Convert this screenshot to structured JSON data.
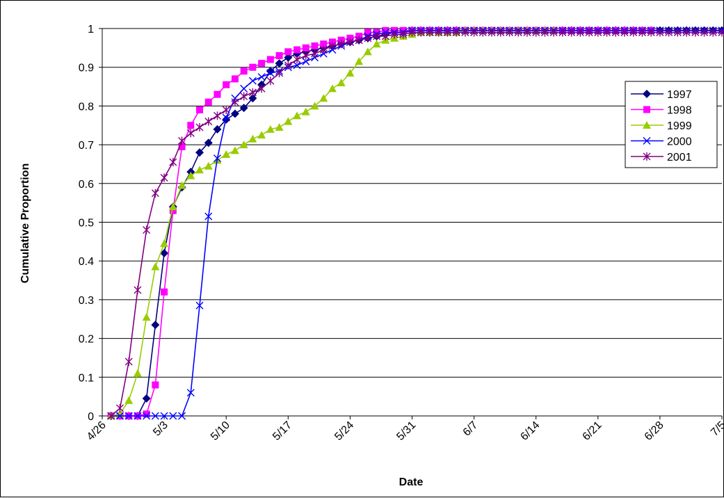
{
  "chart_data": {
    "type": "line",
    "title": "",
    "xlabel": "Date",
    "ylabel": "Cumulative Proportion",
    "x_tick_labels": [
      "4/26",
      "5/3",
      "5/10",
      "5/17",
      "5/24",
      "5/31",
      "6/7",
      "6/14",
      "6/21",
      "6/28",
      "7/5"
    ],
    "y_tick_labels": [
      "0",
      "0.1",
      "0.2",
      "0.3",
      "0.4",
      "0.5",
      "0.6",
      "0.7",
      "0.8",
      "0.9",
      "1"
    ],
    "xlim": [
      "4/26",
      "7/5"
    ],
    "ylim": [
      0,
      1
    ],
    "grid": "horizontal",
    "legend_position": "right",
    "series": [
      {
        "name": "1997",
        "color": "#000080",
        "marker": "diamond",
        "x": [
          "4/27",
          "4/28",
          "4/29",
          "4/30",
          "5/1",
          "5/2",
          "5/3",
          "5/4",
          "5/5",
          "5/6",
          "5/7",
          "5/8",
          "5/9",
          "5/10",
          "5/11",
          "5/12",
          "5/13",
          "5/14",
          "5/15",
          "5/16",
          "5/17",
          "5/18",
          "5/19",
          "5/20",
          "5/21",
          "5/22",
          "5/23",
          "5/24",
          "5/25",
          "5/26",
          "5/27",
          "5/28",
          "5/29",
          "5/30",
          "5/31",
          "6/1",
          "6/2",
          "6/3",
          "6/4",
          "6/5",
          "6/6",
          "6/7",
          "6/8",
          "6/9",
          "6/10",
          "6/11",
          "6/12",
          "6/13",
          "6/14",
          "6/15",
          "6/16",
          "6/17",
          "6/18",
          "6/19",
          "6/20",
          "6/21",
          "6/22",
          "6/23",
          "6/24",
          "6/25",
          "6/26",
          "6/27",
          "6/28",
          "6/29",
          "6/30",
          "7/1",
          "7/2",
          "7/3",
          "7/4",
          "7/5"
        ],
        "y": [
          0,
          0,
          0,
          0,
          0.045,
          0.235,
          0.42,
          0.54,
          0.59,
          0.63,
          0.68,
          0.705,
          0.74,
          0.765,
          0.78,
          0.795,
          0.82,
          0.855,
          0.89,
          0.91,
          0.925,
          0.935,
          0.94,
          0.945,
          0.95,
          0.955,
          0.96,
          0.965,
          0.97,
          0.975,
          0.98,
          0.985,
          0.99,
          0.99,
          0.995,
          0.995,
          0.995,
          0.995,
          0.995,
          0.995,
          0.995,
          0.995,
          0.995,
          0.995,
          0.995,
          0.995,
          0.995,
          0.995,
          0.995,
          0.995,
          0.995,
          0.995,
          0.995,
          0.995,
          0.995,
          0.995,
          0.995,
          0.995,
          0.995,
          0.995,
          0.995,
          0.995,
          0.995,
          0.995,
          0.995,
          0.995,
          0.995,
          0.995,
          0.995,
          0.995
        ]
      },
      {
        "name": "1998",
        "color": "#FF00FF",
        "marker": "square",
        "x": [
          "4/27",
          "4/28",
          "4/29",
          "4/30",
          "5/1",
          "5/2",
          "5/3",
          "5/4",
          "5/5",
          "5/6",
          "5/7",
          "5/8",
          "5/9",
          "5/10",
          "5/11",
          "5/12",
          "5/13",
          "5/14",
          "5/15",
          "5/16",
          "5/17",
          "5/18",
          "5/19",
          "5/20",
          "5/21",
          "5/22",
          "5/23",
          "5/24",
          "5/25",
          "5/26",
          "5/27",
          "5/28",
          "5/29",
          "5/30",
          "5/31",
          "6/1",
          "6/2",
          "6/3",
          "6/4",
          "6/5",
          "6/6",
          "6/7",
          "6/8",
          "6/9",
          "6/10",
          "6/11",
          "6/12",
          "6/13",
          "6/14",
          "6/15",
          "6/16",
          "6/17",
          "6/18",
          "6/19",
          "6/20",
          "6/21",
          "6/22",
          "6/23",
          "6/24",
          "6/25",
          "6/26",
          "6/27"
        ],
        "y": [
          0,
          0,
          0,
          0,
          0.005,
          0.08,
          0.32,
          0.53,
          0.695,
          0.75,
          0.79,
          0.81,
          0.83,
          0.855,
          0.87,
          0.89,
          0.9,
          0.91,
          0.92,
          0.93,
          0.94,
          0.945,
          0.95,
          0.955,
          0.96,
          0.965,
          0.97,
          0.975,
          0.98,
          0.99,
          0.99,
          0.995,
          0.995,
          0.995,
          0.995,
          0.995,
          0.995,
          0.995,
          0.995,
          0.995,
          0.995,
          0.995,
          0.995,
          0.995,
          0.995,
          0.995,
          0.995,
          0.995,
          0.995,
          0.995,
          0.995,
          0.995,
          0.995,
          0.995,
          0.995,
          0.995,
          0.995,
          0.995,
          0.995,
          0.995,
          0.995,
          0.995
        ]
      },
      {
        "name": "1999",
        "color": "#99CC00",
        "marker": "triangle",
        "x": [
          "4/27",
          "4/28",
          "4/29",
          "4/30",
          "5/1",
          "5/2",
          "5/3",
          "5/4",
          "5/5",
          "5/6",
          "5/7",
          "5/8",
          "5/9",
          "5/10",
          "5/11",
          "5/12",
          "5/13",
          "5/14",
          "5/15",
          "5/16",
          "5/17",
          "5/18",
          "5/19",
          "5/20",
          "5/21",
          "5/22",
          "5/23",
          "5/24",
          "5/25",
          "5/26",
          "5/27",
          "5/28",
          "5/29",
          "5/30",
          "5/31",
          "6/1",
          "6/2",
          "6/3",
          "6/4",
          "6/5",
          "6/6",
          "6/7",
          "6/8",
          "6/9",
          "6/10",
          "6/11",
          "6/12",
          "6/13",
          "6/14",
          "6/15",
          "6/16"
        ],
        "y": [
          0,
          0.005,
          0.04,
          0.11,
          0.255,
          0.385,
          0.445,
          0.54,
          0.595,
          0.62,
          0.635,
          0.645,
          0.66,
          0.675,
          0.685,
          0.7,
          0.715,
          0.725,
          0.74,
          0.745,
          0.76,
          0.775,
          0.785,
          0.8,
          0.82,
          0.845,
          0.86,
          0.885,
          0.915,
          0.94,
          0.96,
          0.97,
          0.975,
          0.98,
          0.985,
          0.99,
          0.99,
          0.99,
          0.99,
          0.99,
          0.995,
          0.995,
          0.995,
          0.995,
          0.995,
          0.995,
          0.995,
          0.995,
          0.995,
          0.995,
          0.995
        ]
      },
      {
        "name": "2000",
        "color": "#0000FF",
        "marker": "x",
        "x": [
          "4/27",
          "4/28",
          "4/29",
          "4/30",
          "5/1",
          "5/2",
          "5/3",
          "5/4",
          "5/5",
          "5/6",
          "5/7",
          "5/8",
          "5/9",
          "5/10",
          "5/11",
          "5/12",
          "5/13",
          "5/14",
          "5/15",
          "5/16",
          "5/17",
          "5/18",
          "5/19",
          "5/20",
          "5/21",
          "5/22",
          "5/23",
          "5/24",
          "5/25",
          "5/26",
          "5/27",
          "5/28",
          "5/29",
          "5/30",
          "5/31",
          "6/1",
          "6/2",
          "6/3",
          "6/4",
          "6/5",
          "6/6",
          "6/7",
          "6/8",
          "6/9",
          "6/10",
          "6/11",
          "6/12",
          "6/13",
          "6/14",
          "6/15",
          "6/16",
          "6/17",
          "6/18",
          "6/19",
          "6/20",
          "6/21",
          "6/22",
          "6/23",
          "6/24",
          "6/25",
          "6/26",
          "6/27",
          "6/28",
          "6/29",
          "6/30",
          "7/1",
          "7/2",
          "7/3",
          "7/4",
          "7/5"
        ],
        "y": [
          0,
          0,
          0,
          0,
          0,
          0,
          0,
          0,
          0,
          0.06,
          0.285,
          0.515,
          0.665,
          0.77,
          0.82,
          0.845,
          0.865,
          0.875,
          0.885,
          0.89,
          0.9,
          0.905,
          0.915,
          0.925,
          0.935,
          0.945,
          0.955,
          0.965,
          0.97,
          0.98,
          0.985,
          0.99,
          0.99,
          0.99,
          0.995,
          0.995,
          0.995,
          0.995,
          0.995,
          0.995,
          0.995,
          0.995,
          0.995,
          0.995,
          0.995,
          0.995,
          0.995,
          0.995,
          0.995,
          0.995,
          0.995,
          0.995,
          0.995,
          0.995,
          0.995,
          0.995,
          0.995,
          0.995,
          0.995,
          0.995,
          0.995,
          0.995,
          0.995,
          0.995,
          0.995,
          0.995,
          0.995,
          0.995,
          0.995,
          0.995
        ]
      },
      {
        "name": "2001",
        "color": "#800080",
        "marker": "asterisk",
        "x": [
          "4/27",
          "4/28",
          "4/29",
          "4/30",
          "5/1",
          "5/2",
          "5/3",
          "5/4",
          "5/5",
          "5/6",
          "5/7",
          "5/8",
          "5/9",
          "5/10",
          "5/11",
          "5/12",
          "5/13",
          "5/14",
          "5/15",
          "5/16",
          "5/17",
          "5/18",
          "5/19",
          "5/20",
          "5/21",
          "5/22",
          "5/23",
          "5/24",
          "5/25",
          "5/26",
          "5/27",
          "5/28",
          "5/29",
          "5/30",
          "5/31",
          "6/1",
          "6/2",
          "6/3",
          "6/4",
          "6/5",
          "6/6",
          "6/7",
          "6/8",
          "6/9",
          "6/10",
          "6/11",
          "6/12",
          "6/13",
          "6/14",
          "6/15",
          "6/16",
          "6/17",
          "6/18",
          "6/19",
          "6/20",
          "6/21",
          "6/22",
          "6/23",
          "6/24",
          "6/25",
          "6/26",
          "6/27",
          "6/28",
          "6/29",
          "6/30",
          "7/1",
          "7/2",
          "7/3",
          "7/4",
          "7/5"
        ],
        "y": [
          0,
          0.02,
          0.14,
          0.325,
          0.48,
          0.575,
          0.615,
          0.655,
          0.71,
          0.73,
          0.745,
          0.76,
          0.775,
          0.79,
          0.81,
          0.825,
          0.835,
          0.845,
          0.865,
          0.885,
          0.905,
          0.92,
          0.93,
          0.935,
          0.945,
          0.955,
          0.96,
          0.965,
          0.97,
          0.975,
          0.98,
          0.98,
          0.985,
          0.985,
          0.99,
          0.99,
          0.99,
          0.99,
          0.99,
          0.99,
          0.99,
          0.99,
          0.99,
          0.99,
          0.99,
          0.99,
          0.99,
          0.99,
          0.99,
          0.99,
          0.99,
          0.99,
          0.99,
          0.99,
          0.99,
          0.99,
          0.99,
          0.99,
          0.99,
          0.99,
          0.99,
          0.99,
          0.99,
          0.99,
          0.99,
          0.99,
          0.99,
          0.99,
          0.99,
          0.99
        ]
      }
    ]
  }
}
